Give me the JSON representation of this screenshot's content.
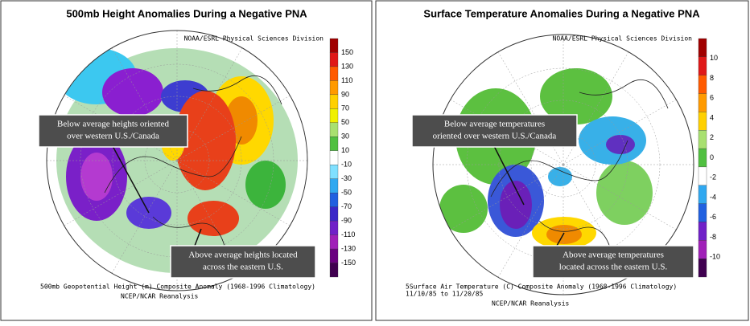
{
  "panels": [
    {
      "title": "500mb Height Anomalies During a Negative PNA",
      "credit": "NOAA/ESRL Physical Sciences Division",
      "callouts": [
        {
          "lines": [
            "Below average heights oriented",
            "over western U.S./Canada"
          ]
        },
        {
          "lines": [
            "Above average heights located",
            "across the eastern U.S."
          ]
        }
      ],
      "colorbar": {
        "ticks": [
          "150",
          "130",
          "110",
          "90",
          "70",
          "50",
          "30",
          "10",
          "-10",
          "-30",
          "-50",
          "-70",
          "-90",
          "-110",
          "-130",
          "-150"
        ]
      },
      "caption": [
        "500mb Geopotential Height (m) Composite Anomaly (1968-1996 Climatology)"
      ],
      "footer": "NCEP/NCAR Reanalysis"
    },
    {
      "title": "Surface Temperature Anomalies During a Negative PNA",
      "credit": "NOAA/ESRL Physical Sciences Division",
      "callouts": [
        {
          "lines": [
            "Below average temperatures",
            "oriented over western U.S./Canada"
          ]
        },
        {
          "lines": [
            "Above average temperatures",
            "located across the eastern U.S."
          ]
        }
      ],
      "colorbar": {
        "ticks": [
          "10",
          "8",
          "6",
          "4",
          "2",
          "0",
          "-2",
          "-4",
          "-6",
          "-8",
          "-10"
        ]
      },
      "caption": [
        "5Surface Air Temperature (C) Composite Anomaly (1968-1996 Climatology)",
        "11/10/85 to 11/20/85"
      ],
      "footer": "NCEP/NCAR Reanalysis"
    }
  ]
}
